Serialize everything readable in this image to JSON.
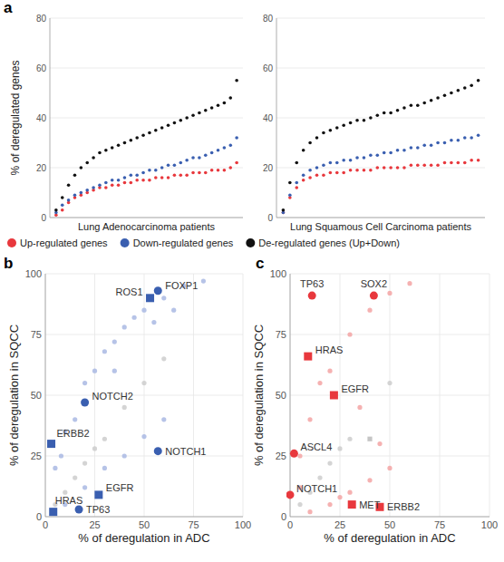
{
  "chart_data": [
    {
      "type": "scatter",
      "title": "a",
      "x_label": "Lung Adenocarcinoma patients",
      "y_label": "% of deregulated genes",
      "x": [
        1,
        2,
        3,
        4,
        5,
        6,
        7,
        8,
        9,
        10,
        11,
        12,
        13,
        14,
        15,
        16,
        17,
        18,
        19,
        20,
        21,
        22,
        23,
        24,
        25,
        26,
        27,
        28,
        29,
        30
      ],
      "xlim": [
        0,
        31
      ],
      "ylim": [
        0,
        80
      ],
      "yticks": [
        0,
        20,
        40,
        60,
        80
      ],
      "grid": true,
      "tick_labels": "y",
      "legend": "bottom",
      "series": [
        {
          "name": "Up-regulated genes",
          "color": "#e8383d",
          "marker": "circle",
          "values": [
            1,
            3,
            6,
            8,
            9,
            10,
            11,
            12,
            12,
            13,
            13,
            14,
            14,
            15,
            15,
            15,
            16,
            16,
            16,
            17,
            17,
            17,
            18,
            18,
            18,
            19,
            19,
            19,
            20,
            22
          ]
        },
        {
          "name": "Down-regulated genes",
          "color": "#3a5fb0",
          "marker": "circle",
          "values": [
            2,
            5,
            7,
            9,
            10,
            11,
            12,
            13,
            14,
            15,
            15,
            16,
            17,
            17,
            18,
            19,
            19,
            20,
            21,
            21,
            22,
            23,
            24,
            24,
            25,
            26,
            27,
            28,
            29,
            32
          ]
        },
        {
          "name": "De-regulated genes (Up+Down)",
          "color": "#111111",
          "marker": "circle",
          "values": [
            3,
            8,
            13,
            17,
            20,
            22,
            24,
            26,
            27,
            28,
            29,
            30,
            31,
            32,
            33,
            34,
            35,
            36,
            37,
            38,
            39,
            40,
            41,
            42,
            43,
            44,
            45,
            46,
            48,
            55
          ]
        }
      ]
    },
    {
      "type": "scatter",
      "x_label": "Lung Squamous Cell Carcinoma patients",
      "x": [
        1,
        2,
        3,
        4,
        5,
        6,
        7,
        8,
        9,
        10,
        11,
        12,
        13,
        14,
        15,
        16,
        17,
        18,
        19,
        20,
        21,
        22,
        23,
        24,
        25,
        26,
        27,
        28,
        29,
        30
      ],
      "xlim": [
        0,
        31
      ],
      "ylim": [
        0,
        80
      ],
      "yticks": [
        0,
        20,
        40,
        60,
        80
      ],
      "grid": true,
      "tick_labels": "y",
      "series": [
        {
          "color": "#e8383d",
          "marker": "circle",
          "values": [
            2,
            8,
            12,
            15,
            16,
            17,
            17,
            18,
            18,
            18,
            19,
            19,
            19,
            19,
            20,
            20,
            20,
            20,
            20,
            21,
            21,
            21,
            21,
            21,
            22,
            22,
            22,
            22,
            23,
            23
          ]
        },
        {
          "color": "#3a5fb0",
          "marker": "circle",
          "values": [
            2,
            9,
            14,
            17,
            19,
            20,
            21,
            22,
            22,
            23,
            23,
            24,
            24,
            25,
            25,
            26,
            26,
            27,
            27,
            28,
            28,
            29,
            29,
            30,
            30,
            31,
            31,
            32,
            32,
            33
          ]
        },
        {
          "color": "#111111",
          "marker": "circle",
          "values": [
            3,
            14,
            22,
            27,
            30,
            32,
            34,
            35,
            36,
            37,
            38,
            39,
            39,
            40,
            41,
            42,
            42,
            43,
            44,
            45,
            45,
            46,
            47,
            48,
            49,
            50,
            51,
            52,
            53,
            55
          ]
        }
      ]
    },
    {
      "type": "scatter",
      "title": "b",
      "x_label": "% of deregulation in ADC",
      "y_label": "% of deregulation in SQCC",
      "xlim": [
        0,
        100
      ],
      "ylim": [
        0,
        100
      ],
      "xticks": [
        0,
        25,
        50,
        75,
        100
      ],
      "yticks": [
        0,
        25,
        50,
        75,
        100
      ],
      "grid": true,
      "series": [
        {
          "color": "#a9b9e3",
          "marker": "circle",
          "x": [
            5,
            10,
            15,
            20,
            25,
            30,
            35,
            40,
            45,
            50,
            60,
            70,
            80,
            10,
            20,
            30,
            40,
            50,
            60,
            8,
            35,
            55,
            65
          ],
          "values": [
            20,
            35,
            40,
            55,
            60,
            68,
            72,
            78,
            82,
            85,
            90,
            95,
            97,
            5,
            12,
            20,
            25,
            33,
            40,
            25,
            60,
            80,
            85
          ]
        },
        {
          "color": "#cccccc",
          "marker": "circle",
          "x": [
            5,
            10,
            20,
            30,
            40,
            50,
            60,
            15,
            25
          ],
          "values": [
            5,
            10,
            22,
            32,
            45,
            55,
            65,
            16,
            28
          ]
        }
      ],
      "annotations": [
        {
          "text": "FOXP1",
          "x": 57,
          "y": 93,
          "marker": "circle",
          "color": "#3a5fb0"
        },
        {
          "text": "ROS1",
          "x": 53,
          "y": 90,
          "marker": "square",
          "color": "#3a5fb0"
        },
        {
          "text": "NOTCH2",
          "x": 20,
          "y": 47,
          "marker": "circle",
          "color": "#3a5fb0"
        },
        {
          "text": "ERBB2",
          "x": 3,
          "y": 30,
          "marker": "square",
          "color": "#3a5fb0"
        },
        {
          "text": "NOTCH1",
          "x": 57,
          "y": 27,
          "marker": "circle",
          "color": "#3a5fb0"
        },
        {
          "text": "EGFR",
          "x": 27,
          "y": 9,
          "marker": "square",
          "color": "#3a5fb0"
        },
        {
          "text": "HRAS",
          "x": 4,
          "y": 2,
          "marker": "square",
          "color": "#3a5fb0"
        },
        {
          "text": "TP63",
          "x": 17,
          "y": 3,
          "marker": "circle",
          "color": "#3a5fb0"
        }
      ]
    },
    {
      "type": "scatter",
      "title": "c",
      "x_label": "% of deregulation in ADC",
      "y_label": "% of deregulation in SQCC",
      "xlim": [
        0,
        100
      ],
      "ylim": [
        0,
        100
      ],
      "xticks": [
        0,
        25,
        50,
        75,
        100
      ],
      "yticks": [
        0,
        25,
        50,
        75,
        100
      ],
      "grid": true,
      "series": [
        {
          "color": "#f3a3a3",
          "marker": "circle",
          "x": [
            5,
            10,
            15,
            20,
            30,
            40,
            50,
            60,
            10,
            20,
            30,
            40,
            50,
            25,
            45,
            35,
            5
          ],
          "values": [
            25,
            40,
            55,
            60,
            75,
            85,
            92,
            96,
            2,
            5,
            10,
            15,
            20,
            8,
            30,
            45,
            12
          ]
        },
        {
          "color": "#cccccc",
          "marker": "circle",
          "x": [
            5,
            10,
            20,
            30,
            50,
            15,
            25
          ],
          "values": [
            5,
            10,
            22,
            32,
            55,
            16,
            28
          ]
        },
        {
          "color": "#bbbbbb",
          "marker": "square",
          "x": [
            40
          ],
          "values": [
            32
          ]
        }
      ],
      "annotations": [
        {
          "text": "TP63",
          "x": 11,
          "y": 91,
          "marker": "circle",
          "color": "#e8383d"
        },
        {
          "text": "SOX2",
          "x": 42,
          "y": 91,
          "marker": "circle",
          "color": "#e8383d"
        },
        {
          "text": "HRAS",
          "x": 9,
          "y": 66,
          "marker": "square",
          "color": "#e8383d"
        },
        {
          "text": "EGFR",
          "x": 22,
          "y": 50,
          "marker": "square",
          "color": "#e8383d"
        },
        {
          "text": "ASCL4",
          "x": 2,
          "y": 26,
          "marker": "circle",
          "color": "#e8383d"
        },
        {
          "text": "NOTCH1",
          "x": 0,
          "y": 9,
          "marker": "circle",
          "color": "#e8383d"
        },
        {
          "text": "MET",
          "x": 31,
          "y": 5,
          "marker": "square",
          "color": "#e8383d"
        },
        {
          "text": "ERBB2",
          "x": 45,
          "y": 4,
          "marker": "square",
          "color": "#e8383d"
        }
      ]
    }
  ]
}
